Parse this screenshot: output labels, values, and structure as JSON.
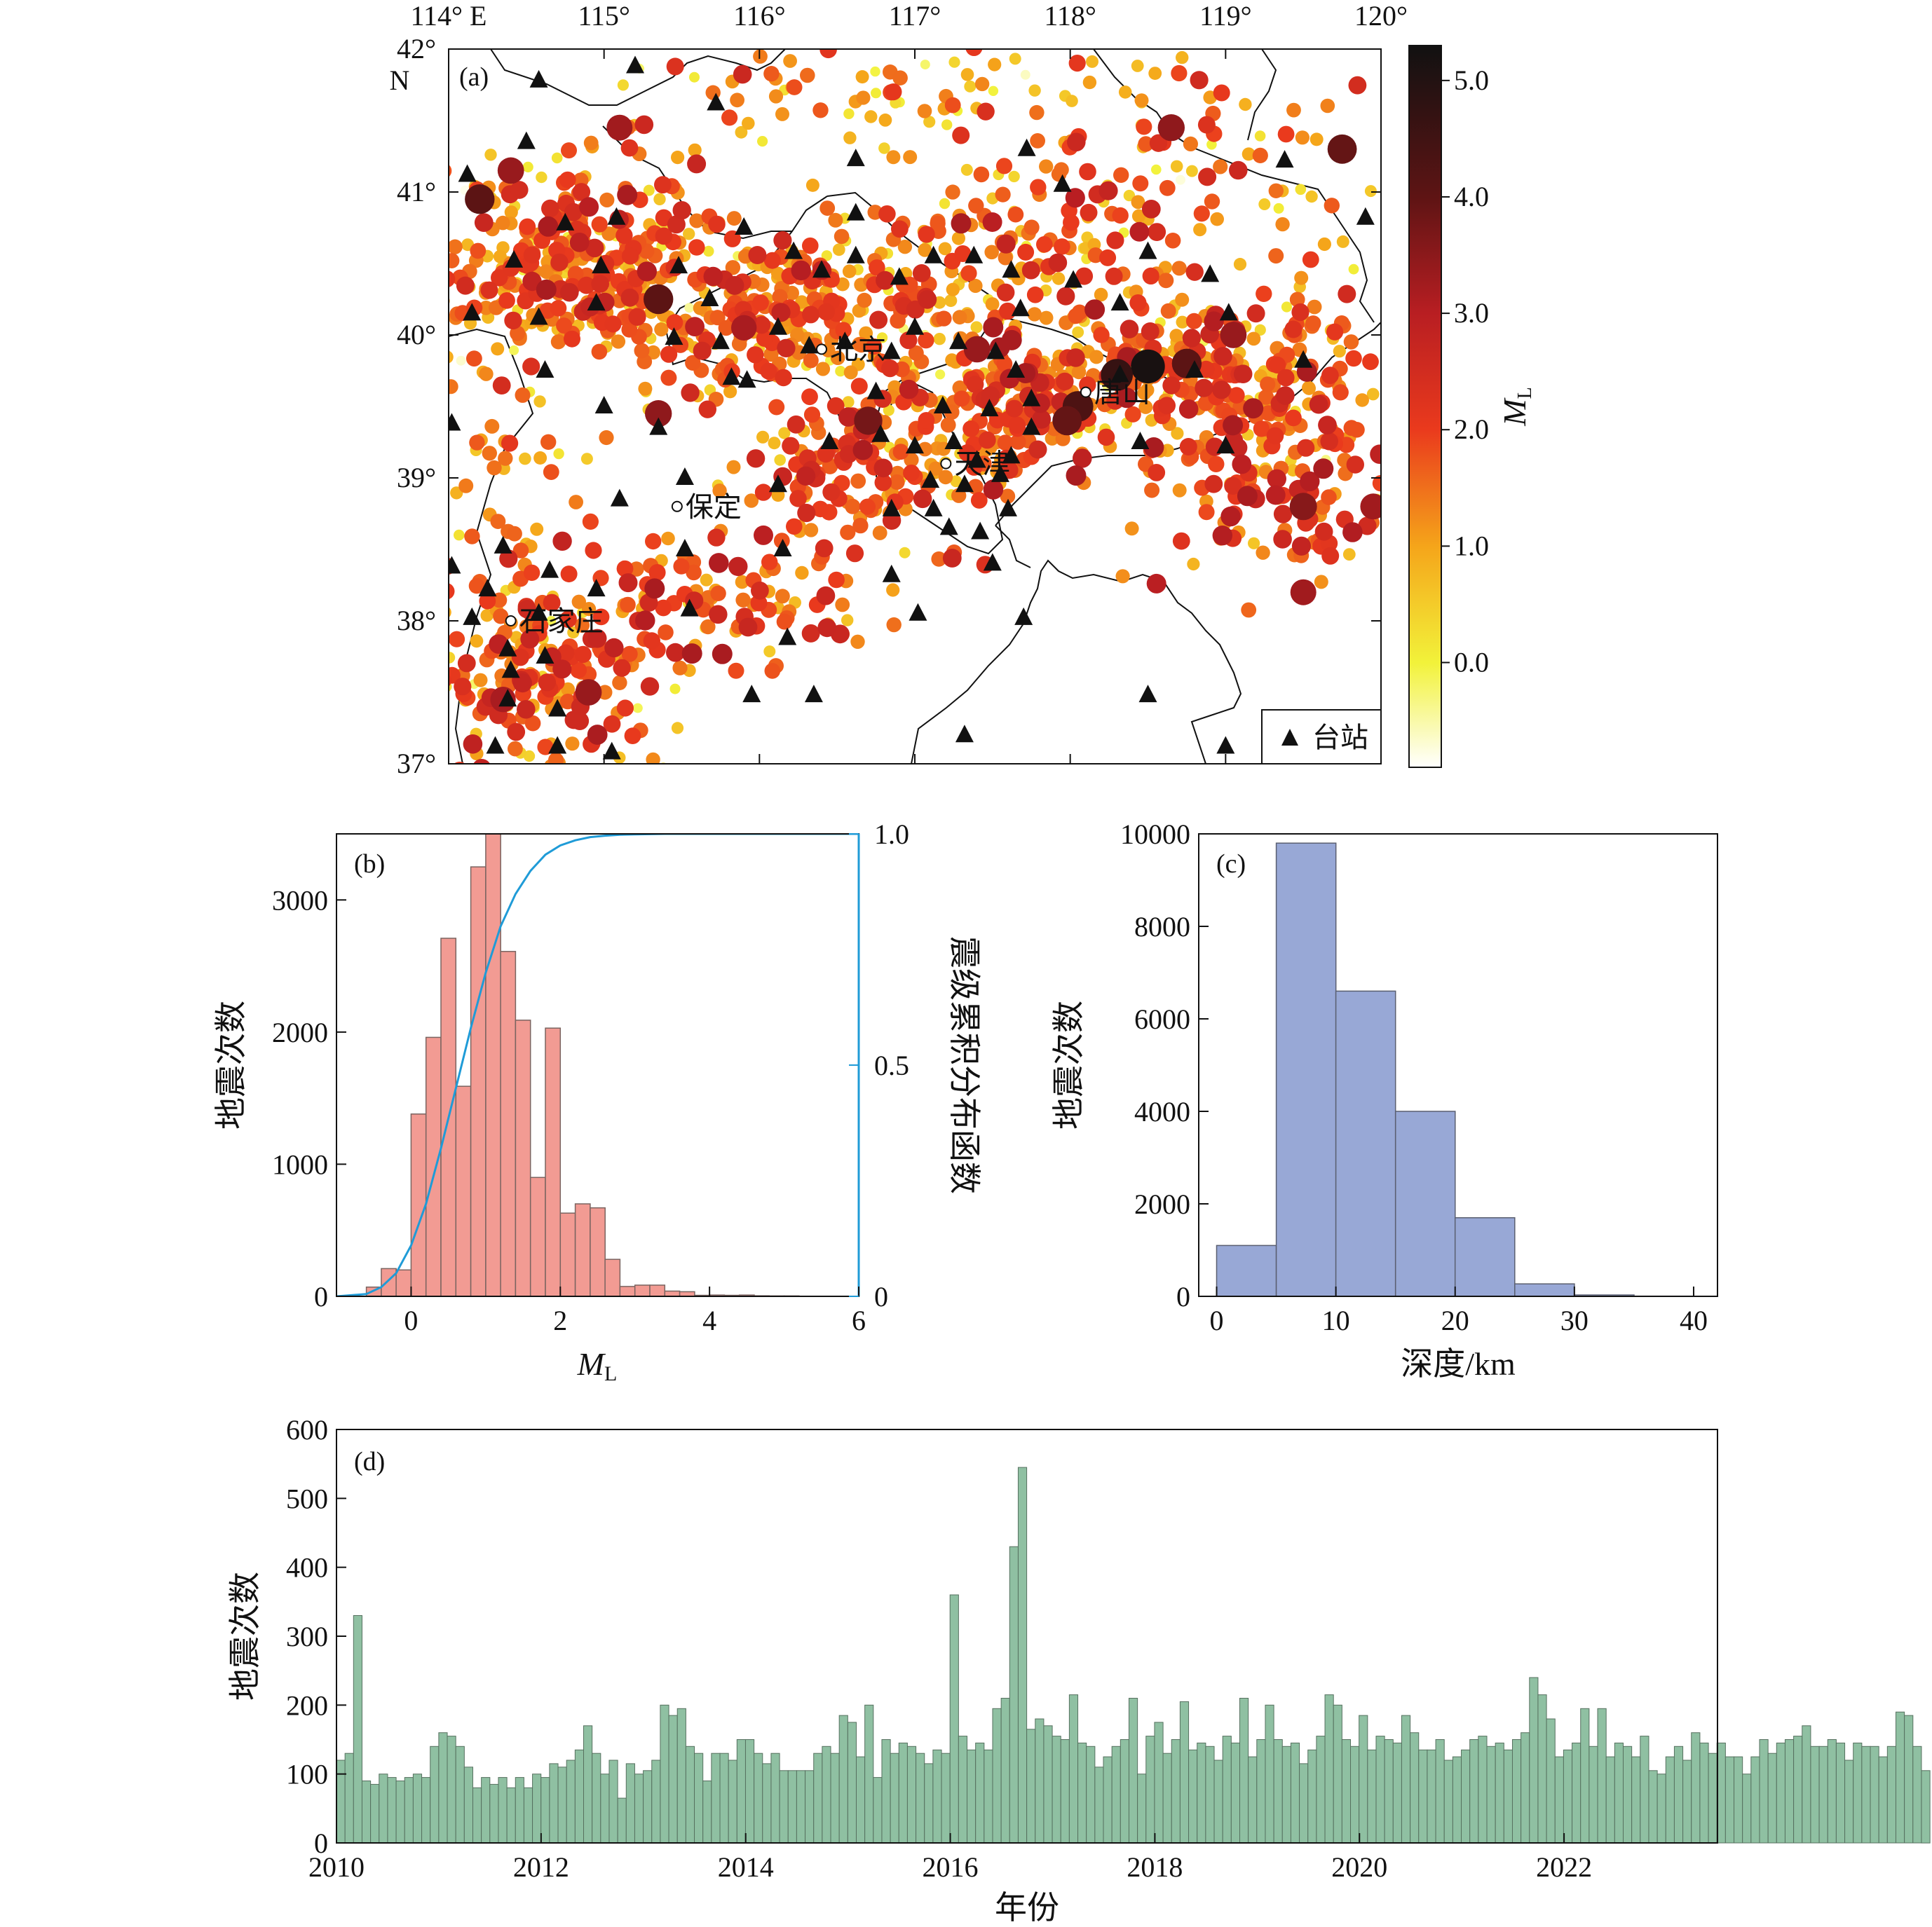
{
  "chart_data": [
    {
      "panel": "(a)",
      "type": "scatter",
      "title": "",
      "xlim": [
        114,
        120
      ],
      "ylim": [
        37,
        42
      ],
      "x_tick_labels": [
        {
          "value": 114,
          "label": "114° E"
        },
        {
          "value": 115,
          "label": "115°"
        },
        {
          "value": 116,
          "label": "116°"
        },
        {
          "value": 117,
          "label": "117°"
        },
        {
          "value": 118,
          "label": "118°"
        },
        {
          "value": 119,
          "label": "119°"
        },
        {
          "value": 120,
          "label": "120°"
        }
      ],
      "y_tick_labels": [
        {
          "value": 42,
          "label": "42°"
        },
        {
          "value": 41,
          "label": "41°"
        },
        {
          "value": 40,
          "label": "40°"
        },
        {
          "value": 39,
          "label": "39°"
        },
        {
          "value": 38,
          "label": "38°"
        },
        {
          "value": 37,
          "label": "37°"
        }
      ],
      "north_label": "N",
      "colorbar": {
        "label_main": "M",
        "label_sub": "L",
        "range": [
          -0.9,
          5.3
        ],
        "ticks": [
          {
            "value": 0,
            "label": "0.0"
          },
          {
            "value": 1,
            "label": "1.0"
          },
          {
            "value": 2,
            "label": "2.0"
          },
          {
            "value": 3,
            "label": "3.0"
          },
          {
            "value": 4,
            "label": "4.0"
          },
          {
            "value": 5,
            "label": "5.0"
          }
        ],
        "colors": [
          "#ffffff",
          "#f2f23a",
          "#f5a51a",
          "#ea3a1d",
          "#b81e22",
          "#5e1414",
          "#111111"
        ]
      },
      "legend": {
        "label": "台站",
        "marker": "triangle",
        "position": "bottom-right"
      },
      "cities": [
        {
          "name": "北京",
          "lon": 116.4,
          "lat": 39.9
        },
        {
          "name": "天津",
          "lon": 117.2,
          "lat": 39.1
        },
        {
          "name": "保定",
          "lon": 115.47,
          "lat": 38.8
        },
        {
          "name": "石家庄",
          "lon": 114.4,
          "lat": 38.0
        },
        {
          "name": "唐山",
          "lon": 118.1,
          "lat": 39.6
        }
      ],
      "event_clusters": [
        {
          "lon": 114.8,
          "lat": 40.5,
          "lon_sd": 0.45,
          "lat_sd": 0.35,
          "count": 330,
          "mag_mean": 1.6
        },
        {
          "lon": 116.2,
          "lat": 40.1,
          "lon_sd": 0.55,
          "lat_sd": 0.3,
          "count": 260,
          "mag_mean": 1.5
        },
        {
          "lon": 118.8,
          "lat": 39.75,
          "lon_sd": 0.6,
          "lat_sd": 0.25,
          "count": 260,
          "mag_mean": 1.6
        },
        {
          "lon": 117.6,
          "lat": 39.5,
          "lon_sd": 0.35,
          "lat_sd": 0.3,
          "count": 170,
          "mag_mean": 1.7
        },
        {
          "lon": 116.7,
          "lat": 39.0,
          "lon_sd": 0.4,
          "lat_sd": 0.3,
          "count": 150,
          "mag_mean": 1.8
        },
        {
          "lon": 114.6,
          "lat": 37.6,
          "lon_sd": 0.4,
          "lat_sd": 0.35,
          "count": 170,
          "mag_mean": 1.8
        },
        {
          "lon": 115.6,
          "lat": 38.1,
          "lon_sd": 0.45,
          "lat_sd": 0.3,
          "count": 110,
          "mag_mean": 1.9
        },
        {
          "lon": 119.3,
          "lat": 39.0,
          "lon_sd": 0.45,
          "lat_sd": 0.4,
          "count": 150,
          "mag_mean": 2.0
        },
        {
          "lon": 118.5,
          "lat": 41.1,
          "lon_sd": 0.8,
          "lat_sd": 0.5,
          "count": 150,
          "mag_mean": 1.6
        },
        {
          "lon": 116.7,
          "lat": 41.7,
          "lon_sd": 0.8,
          "lat_sd": 0.25,
          "count": 70,
          "mag_mean": 1.2
        },
        {
          "lon": 114.3,
          "lat": 39.0,
          "lon_sd": 0.25,
          "lat_sd": 0.6,
          "count": 60,
          "mag_mean": 1.5
        },
        {
          "lon": 117.3,
          "lat": 40.5,
          "lon_sd": 0.5,
          "lat_sd": 0.3,
          "count": 90,
          "mag_mean": 1.5
        }
      ],
      "large_events": [
        {
          "lon": 118.5,
          "lat": 39.78,
          "mag": 5.2
        },
        {
          "lon": 118.3,
          "lat": 39.72,
          "mag": 4.8
        },
        {
          "lon": 118.05,
          "lat": 39.5,
          "mag": 4.5
        },
        {
          "lon": 117.98,
          "lat": 39.4,
          "mag": 4.2
        },
        {
          "lon": 118.75,
          "lat": 39.8,
          "mag": 4.3
        },
        {
          "lon": 119.75,
          "lat": 41.3,
          "mag": 4.2
        },
        {
          "lon": 114.2,
          "lat": 40.95,
          "mag": 4.3
        },
        {
          "lon": 114.4,
          "lat": 41.15,
          "mag": 3.6
        },
        {
          "lon": 115.35,
          "lat": 40.25,
          "mag": 4.3
        },
        {
          "lon": 116.7,
          "lat": 39.4,
          "mag": 4.0
        },
        {
          "lon": 119.5,
          "lat": 38.8,
          "mag": 3.8
        },
        {
          "lon": 119.5,
          "lat": 38.2,
          "mag": 3.5
        },
        {
          "lon": 114.9,
          "lat": 37.5,
          "mag": 3.6
        },
        {
          "lon": 118.65,
          "lat": 41.45,
          "mag": 3.7
        },
        {
          "lon": 115.1,
          "lat": 41.45,
          "mag": 3.5
        },
        {
          "lon": 115.35,
          "lat": 39.45,
          "mag": 3.7
        },
        {
          "lon": 117.4,
          "lat": 39.9,
          "mag": 3.6
        },
        {
          "lon": 115.9,
          "lat": 40.05,
          "mag": 3.4
        },
        {
          "lon": 114.35,
          "lat": 37.45,
          "mag": 3.4
        },
        {
          "lon": 119.05,
          "lat": 40.0,
          "mag": 3.6
        },
        {
          "lon": 119.95,
          "lat": 38.8,
          "mag": 3.5
        }
      ],
      "stations": [
        [
          114.58,
          41.78
        ],
        [
          115.2,
          41.88
        ],
        [
          115.72,
          41.62
        ],
        [
          116.62,
          41.23
        ],
        [
          117.72,
          41.3
        ],
        [
          117.95,
          41.05
        ],
        [
          119.38,
          41.22
        ],
        [
          119.9,
          40.82
        ],
        [
          114.12,
          41.12
        ],
        [
          114.5,
          41.35
        ],
        [
          114.75,
          40.78
        ],
        [
          114.42,
          40.52
        ],
        [
          115.08,
          40.82
        ],
        [
          114.98,
          40.48
        ],
        [
          115.48,
          40.48
        ],
        [
          115.68,
          40.25
        ],
        [
          115.9,
          40.75
        ],
        [
          116.22,
          40.58
        ],
        [
          116.62,
          40.85
        ],
        [
          116.4,
          40.45
        ],
        [
          116.62,
          40.55
        ],
        [
          116.9,
          40.4
        ],
        [
          117.12,
          40.55
        ],
        [
          117.38,
          40.55
        ],
        [
          117.62,
          40.45
        ],
        [
          117.68,
          40.18
        ],
        [
          118.02,
          40.38
        ],
        [
          118.32,
          40.22
        ],
        [
          118.5,
          40.58
        ],
        [
          118.9,
          40.42
        ],
        [
          119.02,
          40.15
        ],
        [
          114.15,
          40.15
        ],
        [
          114.58,
          40.12
        ],
        [
          114.95,
          40.22
        ],
        [
          115.45,
          39.98
        ],
        [
          115.75,
          39.95
        ],
        [
          116.12,
          40.05
        ],
        [
          116.32,
          39.92
        ],
        [
          116.55,
          39.95
        ],
        [
          116.85,
          39.88
        ],
        [
          117.0,
          40.05
        ],
        [
          117.28,
          39.95
        ],
        [
          117.52,
          39.88
        ],
        [
          117.65,
          39.75
        ],
        [
          118.32,
          39.72
        ],
        [
          118.8,
          39.75
        ],
        [
          119.5,
          39.82
        ],
        [
          114.62,
          39.75
        ],
        [
          115.0,
          39.5
        ],
        [
          115.35,
          39.35
        ],
        [
          115.82,
          39.7
        ],
        [
          115.92,
          39.68
        ],
        [
          116.75,
          39.6
        ],
        [
          117.18,
          39.5
        ],
        [
          117.48,
          39.48
        ],
        [
          117.75,
          39.55
        ],
        [
          116.45,
          39.25
        ],
        [
          116.78,
          39.3
        ],
        [
          117.0,
          39.22
        ],
        [
          117.25,
          39.25
        ],
        [
          117.4,
          39.12
        ],
        [
          117.62,
          39.15
        ],
        [
          117.75,
          39.35
        ],
        [
          118.45,
          39.25
        ],
        [
          119.0,
          39.22
        ],
        [
          114.02,
          39.38
        ],
        [
          114.02,
          38.38
        ],
        [
          114.35,
          38.52
        ],
        [
          114.25,
          38.22
        ],
        [
          114.65,
          38.35
        ],
        [
          114.95,
          38.22
        ],
        [
          114.58,
          38.05
        ],
        [
          114.15,
          38.02
        ],
        [
          114.38,
          37.8
        ],
        [
          114.62,
          37.75
        ],
        [
          114.4,
          37.65
        ],
        [
          114.38,
          37.45
        ],
        [
          114.7,
          37.38
        ],
        [
          114.3,
          37.12
        ],
        [
          114.7,
          37.12
        ],
        [
          115.05,
          37.08
        ],
        [
          115.55,
          38.08
        ],
        [
          115.52,
          38.5
        ],
        [
          115.52,
          39.0
        ],
        [
          115.1,
          38.85
        ],
        [
          116.12,
          38.95
        ],
        [
          116.15,
          38.5
        ],
        [
          116.85,
          38.32
        ],
        [
          116.85,
          38.78
        ],
        [
          117.12,
          38.78
        ],
        [
          117.1,
          38.98
        ],
        [
          117.32,
          38.95
        ],
        [
          117.55,
          39.02
        ],
        [
          117.22,
          38.65
        ],
        [
          117.42,
          38.62
        ],
        [
          117.5,
          38.4
        ],
        [
          117.6,
          38.78
        ],
        [
          117.7,
          38.02
        ],
        [
          117.02,
          38.05
        ],
        [
          116.18,
          37.88
        ],
        [
          115.95,
          37.48
        ],
        [
          116.35,
          37.48
        ],
        [
          117.32,
          37.2
        ],
        [
          118.5,
          37.48
        ],
        [
          119.0,
          37.12
        ]
      ]
    },
    {
      "panel": "(b)",
      "type": "bar",
      "title": "",
      "xlabel_main": "M",
      "xlabel_sub": "L",
      "ylabel": "地震次数",
      "y2label": "震级累积分布函数",
      "xlim": [
        -1,
        6
      ],
      "ylim": [
        0,
        3500
      ],
      "y2lim": [
        0,
        1
      ],
      "xticks": [
        0,
        2,
        4,
        6
      ],
      "yticks": [
        0,
        1000,
        2000,
        3000
      ],
      "y2ticks": [
        {
          "value": 0,
          "label": "0"
        },
        {
          "value": 0.5,
          "label": "0.5"
        },
        {
          "value": 1,
          "label": "1.0"
        }
      ],
      "bin_width": 0.2,
      "bin_starts": [
        -0.6,
        -0.4,
        -0.2,
        0.0,
        0.2,
        0.4,
        0.6,
        0.8,
        1.0,
        1.2,
        1.4,
        1.6,
        1.8,
        2.0,
        2.2,
        2.4,
        2.6,
        2.8,
        3.0,
        3.2,
        3.4,
        3.6,
        3.8,
        4.0,
        4.2,
        4.4,
        4.6,
        4.8,
        5.0
      ],
      "values": [
        70,
        210,
        200,
        1380,
        1960,
        2710,
        1590,
        3250,
        3500,
        2610,
        2090,
        900,
        2030,
        630,
        700,
        670,
        280,
        75,
        85,
        85,
        40,
        35,
        8,
        10,
        8,
        10,
        4,
        3,
        3
      ],
      "cdf": {
        "x": [
          -1.0,
          -0.6,
          -0.4,
          -0.2,
          0.0,
          0.2,
          0.4,
          0.6,
          0.8,
          1.0,
          1.2,
          1.4,
          1.6,
          1.8,
          2.0,
          2.2,
          2.4,
          2.6,
          2.8,
          3.0,
          3.4,
          4.0,
          6.0
        ],
        "values": [
          0.0,
          0.005,
          0.02,
          0.05,
          0.11,
          0.2,
          0.32,
          0.45,
          0.58,
          0.7,
          0.8,
          0.87,
          0.92,
          0.955,
          0.975,
          0.986,
          0.993,
          0.996,
          0.998,
          0.999,
          1.0,
          1.0,
          1.0
        ],
        "color": "#1f9bd7"
      },
      "bar_color": "#f29b93"
    },
    {
      "panel": "(c)",
      "type": "bar",
      "title": "",
      "xlabel": "深度/km",
      "ylabel": "地震次数",
      "xlim": [
        -1.5,
        42
      ],
      "ylim": [
        0,
        10000
      ],
      "xticks": [
        0,
        10,
        20,
        30,
        40
      ],
      "yticks": [
        0,
        2000,
        4000,
        6000,
        8000,
        10000
      ],
      "bin_width": 5,
      "bin_starts": [
        0,
        5,
        10,
        15,
        20,
        25,
        30,
        35
      ],
      "values": [
        1100,
        9800,
        6600,
        4000,
        1700,
        270,
        30,
        5
      ],
      "bar_color": "#98a8d6"
    },
    {
      "panel": "(d)",
      "type": "bar",
      "title": "",
      "xlabel": "年份",
      "ylabel": "地震次数",
      "xlim": [
        2010,
        2023.5
      ],
      "ylim": [
        0,
        600
      ],
      "xticks": [
        2010,
        2012,
        2014,
        2016,
        2018,
        2020,
        2022
      ],
      "yticks": [
        0,
        100,
        200,
        300,
        400,
        500,
        600
      ],
      "bin_width_years": 0.0833,
      "start_year": 2010,
      "values": [
        120,
        130,
        330,
        90,
        85,
        100,
        95,
        90,
        95,
        100,
        95,
        140,
        160,
        155,
        140,
        110,
        80,
        95,
        85,
        95,
        80,
        95,
        80,
        100,
        95,
        115,
        110,
        120,
        135,
        170,
        130,
        100,
        120,
        65,
        115,
        100,
        105,
        120,
        200,
        185,
        195,
        140,
        130,
        90,
        130,
        130,
        120,
        150,
        150,
        130,
        115,
        130,
        105,
        105,
        105,
        105,
        130,
        140,
        130,
        185,
        175,
        125,
        200,
        95,
        150,
        130,
        145,
        140,
        130,
        115,
        135,
        130,
        360,
        155,
        135,
        145,
        135,
        195,
        210,
        430,
        545,
        165,
        180,
        170,
        155,
        150,
        215,
        145,
        140,
        110,
        125,
        140,
        150,
        210,
        100,
        155,
        175,
        130,
        150,
        205,
        135,
        145,
        140,
        120,
        155,
        145,
        210,
        125,
        150,
        200,
        150,
        140,
        145,
        115,
        135,
        155,
        215,
        200,
        150,
        140,
        185,
        135,
        155,
        150,
        145,
        185,
        160,
        135,
        135,
        150,
        120,
        125,
        135,
        150,
        155,
        140,
        145,
        135,
        150,
        160,
        240,
        215,
        180,
        125,
        135,
        145,
        195,
        140,
        195,
        125,
        145,
        140,
        125,
        155,
        105,
        100,
        125,
        140,
        120,
        160,
        145,
        130,
        145,
        125,
        125,
        100,
        125,
        150,
        130,
        145,
        150,
        155,
        170,
        140,
        140,
        150,
        145,
        120,
        145,
        140,
        140,
        125,
        140,
        190,
        185,
        140,
        105
      ],
      "bar_color": "#8fc0a2"
    }
  ]
}
